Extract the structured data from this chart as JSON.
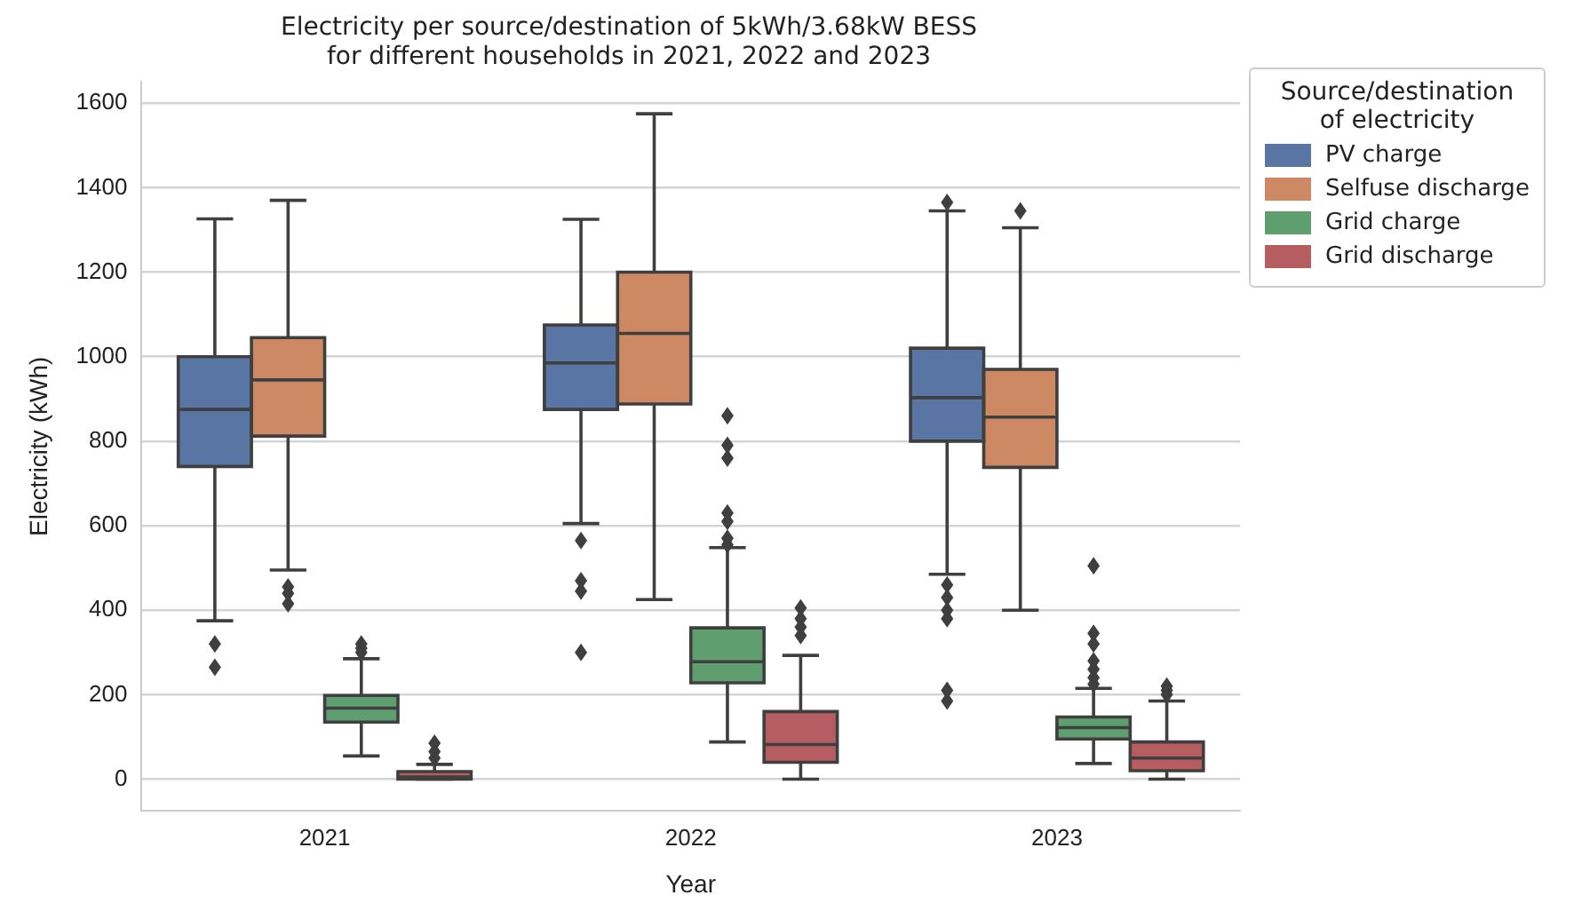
{
  "chart_data": {
    "type": "box",
    "title": "Electricity per source/destination of 5kWh/3.68kW BESS\nfor different households in 2021, 2022 and 2023",
    "xlabel": "Year",
    "ylabel": "Electricity (kWh)",
    "legend_title": "Source/destination\nof electricity",
    "legend": "right",
    "grid": "y",
    "categories": [
      "2021",
      "2022",
      "2023"
    ],
    "ylim": [
      -75,
      1650
    ],
    "yticks": [
      0,
      200,
      400,
      600,
      800,
      1000,
      1200,
      1400,
      1600
    ],
    "series": [
      {
        "name": "PV charge",
        "color": "#5875a4",
        "boxes": [
          {
            "low": 375,
            "q1": 740,
            "median": 875,
            "q3": 1000,
            "high": 1326,
            "outliers": [
              320,
              265
            ]
          },
          {
            "low": 605,
            "q1": 875,
            "median": 985,
            "q3": 1075,
            "high": 1325,
            "outliers": [
              565,
              470,
              445,
              300
            ]
          },
          {
            "low": 485,
            "q1": 800,
            "median": 903,
            "q3": 1020,
            "high": 1345,
            "outliers": [
              1365,
              460,
              430,
              400,
              380,
              210,
              185
            ]
          }
        ]
      },
      {
        "name": "Selfuse discharge",
        "color": "#cc8963",
        "boxes": [
          {
            "low": 495,
            "q1": 812,
            "median": 945,
            "q3": 1045,
            "high": 1370,
            "outliers": [
              455,
              440,
              415
            ]
          },
          {
            "low": 425,
            "q1": 888,
            "median": 1055,
            "q3": 1200,
            "high": 1575
          },
          {
            "low": 400,
            "q1": 738,
            "median": 857,
            "q3": 970,
            "high": 1305,
            "outliers": [
              1345
            ]
          }
        ]
      },
      {
        "name": "Grid charge",
        "color": "#5f9e6e",
        "boxes": [
          {
            "low": 55,
            "q1": 135,
            "median": 168,
            "q3": 198,
            "high": 285,
            "outliers": [
              300,
              310,
              320
            ]
          },
          {
            "low": 88,
            "q1": 228,
            "median": 278,
            "q3": 358,
            "high": 548,
            "outliers": [
              860,
              790,
              760,
              630,
              610,
              570,
              555
            ]
          },
          {
            "low": 37,
            "q1": 95,
            "median": 122,
            "q3": 147,
            "high": 215,
            "outliers": [
              505,
              345,
              320,
              280,
              260,
              240,
              225
            ]
          }
        ]
      },
      {
        "name": "Grid discharge",
        "color": "#b55d60",
        "boxes": [
          {
            "low": 0,
            "q1": 0,
            "median": 5,
            "q3": 18,
            "high": 35,
            "outliers": [
              50,
              65,
              85
            ]
          },
          {
            "low": 0,
            "q1": 40,
            "median": 82,
            "q3": 160,
            "high": 293,
            "outliers": [
              405,
              380,
              360,
              340
            ]
          },
          {
            "low": 0,
            "q1": 20,
            "median": 50,
            "q3": 88,
            "high": 185,
            "outliers": [
              220,
              210,
              200
            ]
          }
        ]
      }
    ]
  }
}
